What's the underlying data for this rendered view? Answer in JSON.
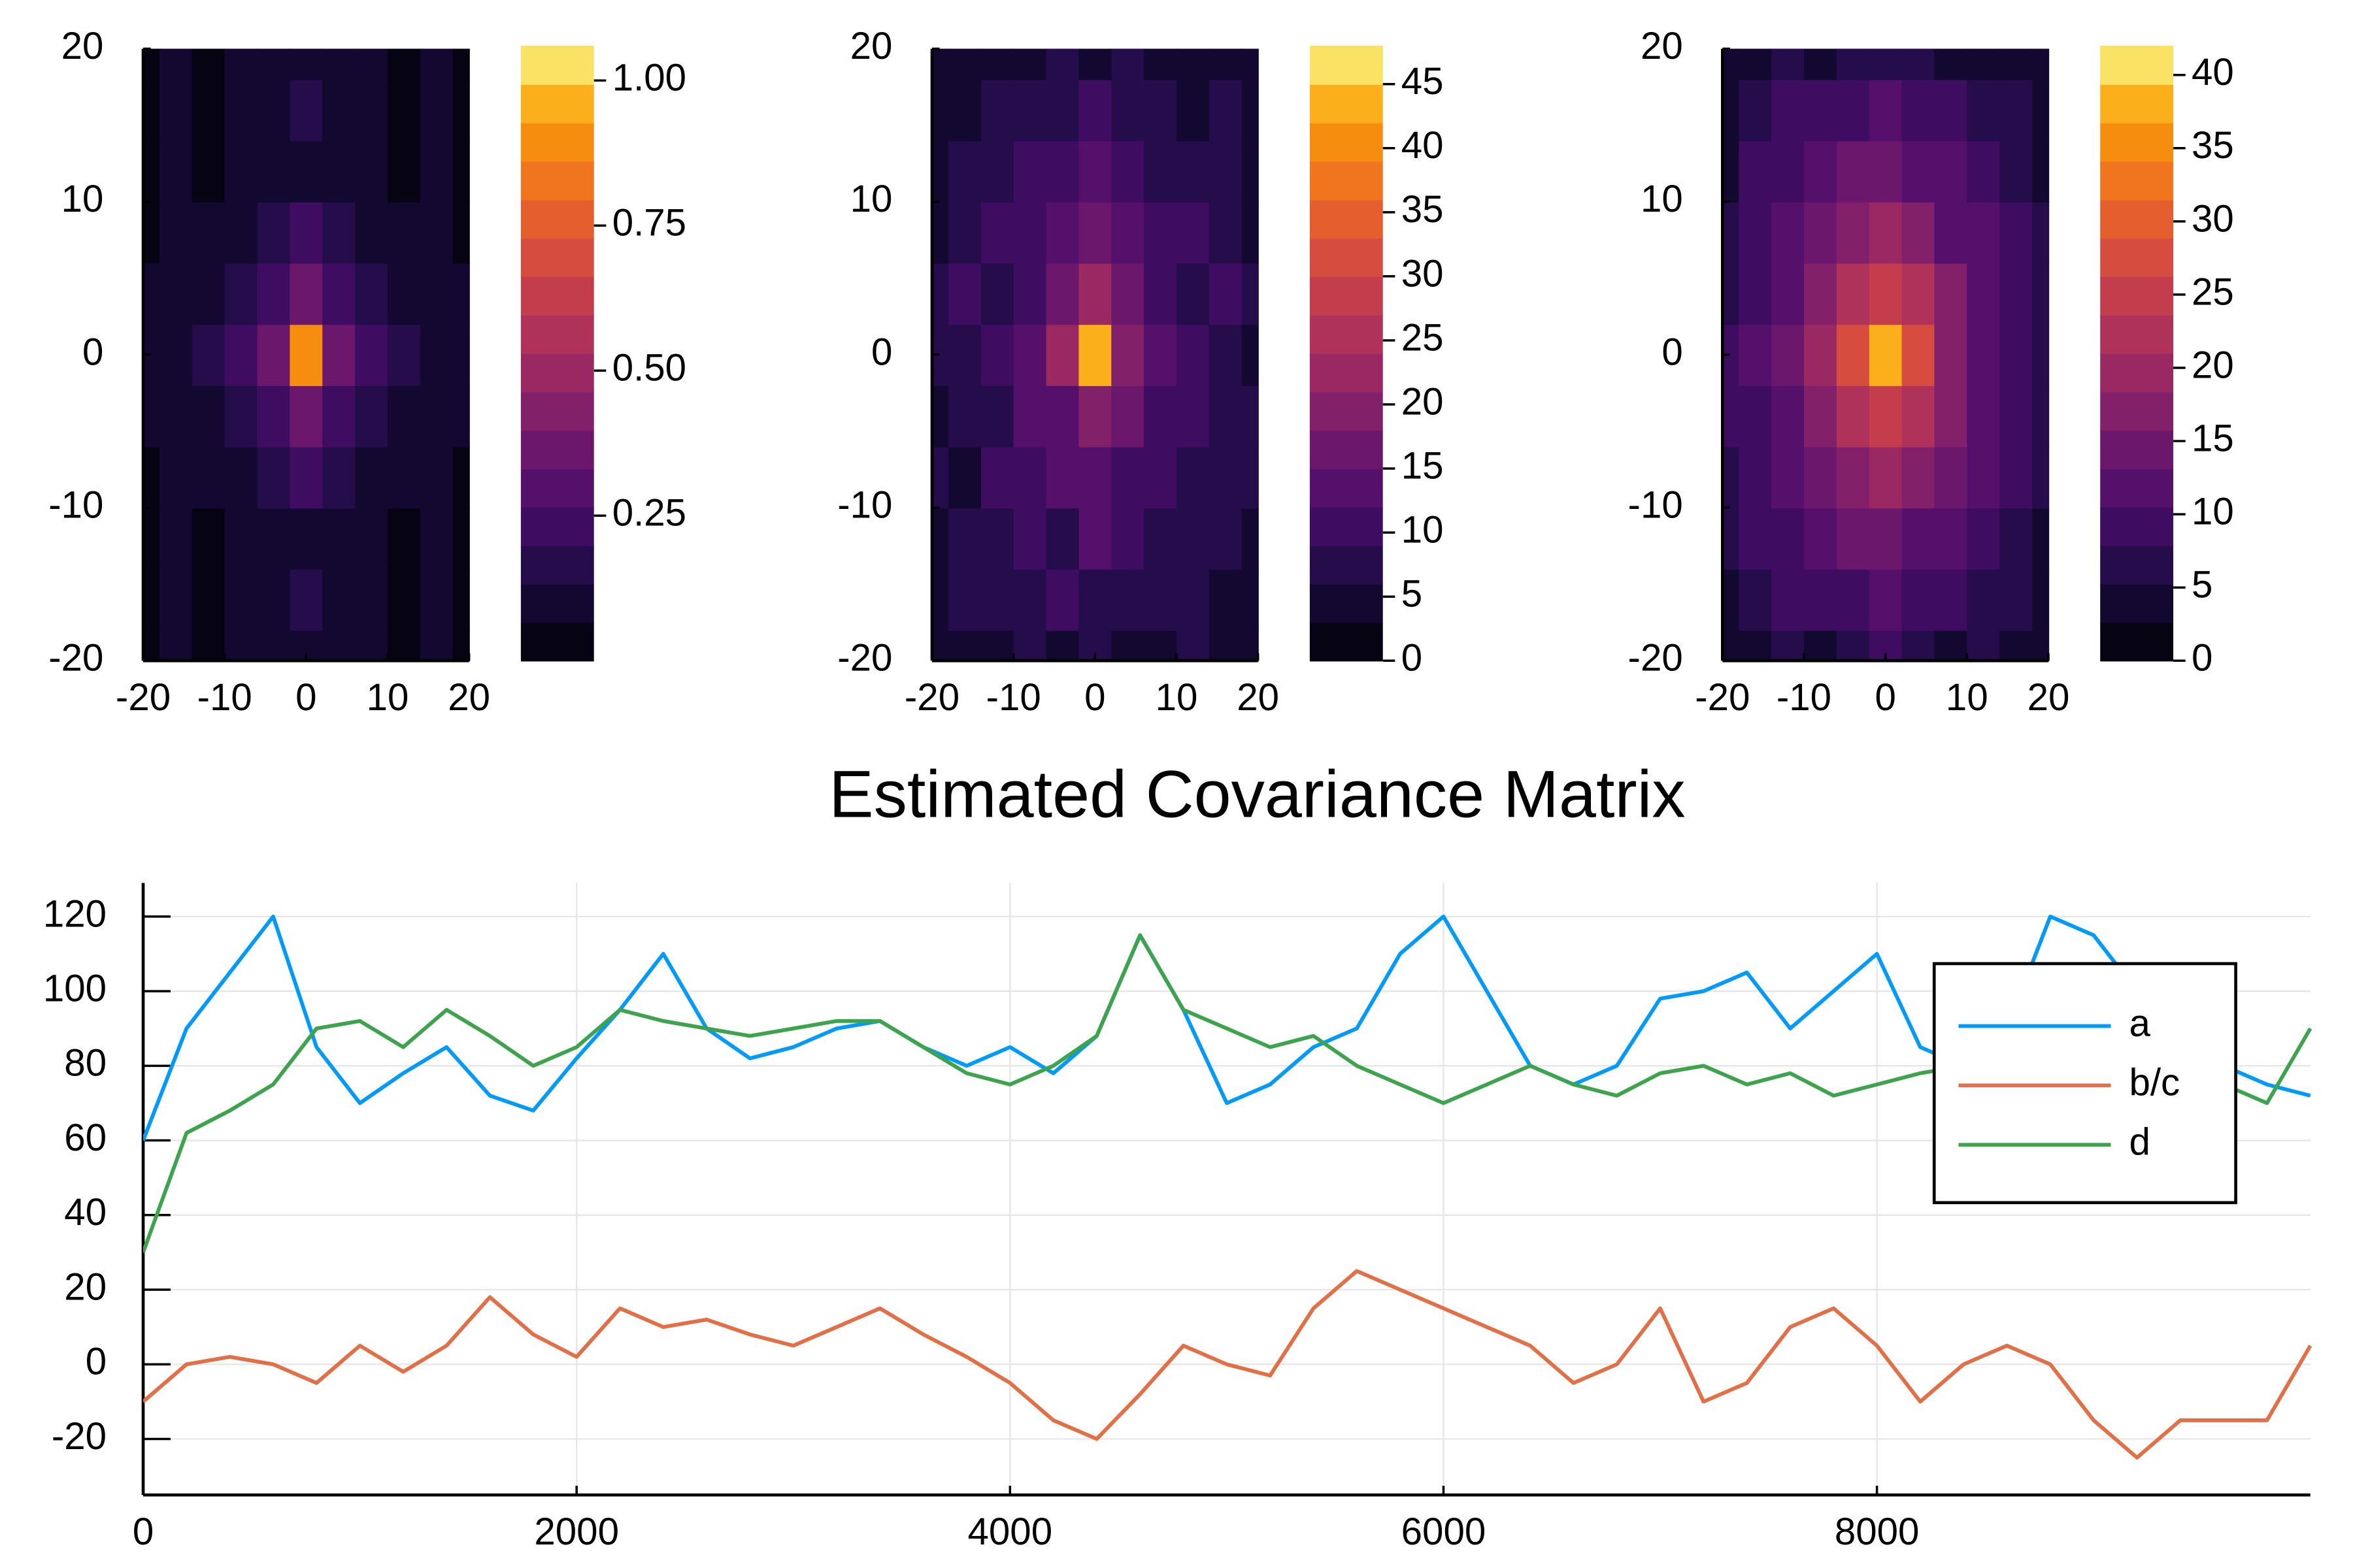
{
  "chart_data": [
    {
      "type": "heatmap",
      "colormap": "inferno",
      "x": [
        -20,
        -16,
        -12,
        -8,
        -4,
        0,
        4,
        8,
        12,
        16,
        20
      ],
      "y": [
        -20,
        -16,
        -12,
        -8,
        -4,
        0,
        4,
        8,
        12,
        16,
        20
      ],
      "z": [
        [
          0.04,
          0.07,
          0.05,
          0.08,
          0.1,
          0.13,
          0.1,
          0.08,
          0.05,
          0.07,
          0.04
        ],
        [
          0.05,
          0.08,
          0.06,
          0.09,
          0.11,
          0.14,
          0.11,
          0.09,
          0.06,
          0.08,
          0.05
        ],
        [
          0.04,
          0.07,
          0.05,
          0.08,
          0.1,
          0.13,
          0.1,
          0.08,
          0.05,
          0.07,
          0.04
        ],
        [
          0.06,
          0.09,
          0.07,
          0.11,
          0.15,
          0.22,
          0.15,
          0.11,
          0.07,
          0.09,
          0.06
        ],
        [
          0.08,
          0.1,
          0.09,
          0.14,
          0.2,
          0.35,
          0.2,
          0.14,
          0.09,
          0.1,
          0.08
        ],
        [
          0.1,
          0.12,
          0.14,
          0.2,
          0.35,
          0.9,
          0.35,
          0.2,
          0.14,
          0.12,
          0.1
        ],
        [
          0.08,
          0.1,
          0.09,
          0.14,
          0.2,
          0.35,
          0.2,
          0.14,
          0.09,
          0.1,
          0.08
        ],
        [
          0.06,
          0.09,
          0.07,
          0.11,
          0.15,
          0.22,
          0.15,
          0.11,
          0.07,
          0.09,
          0.06
        ],
        [
          0.04,
          0.07,
          0.05,
          0.08,
          0.1,
          0.13,
          0.1,
          0.08,
          0.05,
          0.07,
          0.04
        ],
        [
          0.05,
          0.08,
          0.06,
          0.09,
          0.11,
          0.14,
          0.11,
          0.09,
          0.06,
          0.08,
          0.05
        ],
        [
          0.04,
          0.07,
          0.05,
          0.08,
          0.1,
          0.13,
          0.1,
          0.08,
          0.05,
          0.07,
          0.04
        ]
      ],
      "xlim": [
        -20,
        20
      ],
      "ylim": [
        -20,
        20
      ],
      "xticks": [
        -20,
        -10,
        0,
        10,
        20
      ],
      "yticks": [
        -20,
        -10,
        0,
        10,
        20
      ],
      "clim": [
        0,
        1.06
      ],
      "cticks": [
        0.25,
        {
          "value": 0.5,
          "label": "0.50"
        },
        0.75,
        {
          "value": 1,
          "label": "1.00"
        }
      ]
    },
    {
      "type": "heatmap",
      "colormap": "inferno",
      "x": [
        -20,
        -16,
        -12,
        -8,
        -4,
        0,
        4,
        8,
        12,
        16,
        20
      ],
      "y": [
        -20,
        -16,
        -12,
        -8,
        -4,
        0,
        4,
        8,
        12,
        16,
        20
      ],
      "z": [
        [
          3,
          5,
          4,
          6,
          5,
          7,
          5,
          4,
          6,
          3,
          4
        ],
        [
          5,
          6,
          8,
          6,
          9,
          8,
          7,
          6,
          8,
          5,
          4
        ],
        [
          4,
          7,
          6,
          9,
          8,
          12,
          9,
          7,
          6,
          8,
          5
        ],
        [
          6,
          5,
          9,
          10,
          12,
          14,
          11,
          9,
          8,
          6,
          7
        ],
        [
          5,
          8,
          7,
          12,
          14,
          20,
          15,
          10,
          9,
          7,
          6
        ],
        [
          7,
          6,
          10,
          13,
          22,
          42,
          20,
          12,
          9,
          8,
          5
        ],
        [
          6,
          9,
          8,
          11,
          15,
          22,
          16,
          11,
          8,
          9,
          6
        ],
        [
          5,
          7,
          9,
          10,
          13,
          15,
          12,
          9,
          10,
          6,
          5
        ],
        [
          4,
          6,
          8,
          9,
          10,
          13,
          9,
          8,
          7,
          6,
          4
        ],
        [
          5,
          4,
          7,
          6,
          8,
          9,
          7,
          6,
          5,
          7,
          3
        ],
        [
          3,
          5,
          4,
          5,
          6,
          5,
          6,
          4,
          5,
          3,
          4
        ]
      ],
      "xlim": [
        -20,
        20
      ],
      "ylim": [
        -20,
        20
      ],
      "xticks": [
        -20,
        -10,
        0,
        10,
        20
      ],
      "yticks": [
        -20,
        -10,
        0,
        10,
        20
      ],
      "clim": [
        0,
        48
      ],
      "cticks": [
        0,
        5,
        10,
        15,
        20,
        25,
        30,
        35,
        40,
        45
      ]
    },
    {
      "type": "heatmap",
      "colormap": "inferno",
      "x": [
        -20,
        -16,
        -12,
        -8,
        -4,
        0,
        4,
        8,
        12,
        16,
        20
      ],
      "y": [
        -20,
        -16,
        -12,
        -8,
        -4,
        0,
        4,
        8,
        12,
        16,
        20
      ],
      "z": [
        [
          4,
          5,
          6,
          5,
          7,
          8,
          6,
          5,
          6,
          4,
          3
        ],
        [
          5,
          7,
          8,
          9,
          10,
          11,
          9,
          8,
          7,
          6,
          4
        ],
        [
          6,
          8,
          10,
          12,
          14,
          15,
          13,
          11,
          9,
          7,
          5
        ],
        [
          7,
          9,
          12,
          15,
          18,
          20,
          17,
          14,
          11,
          8,
          6
        ],
        [
          8,
          10,
          13,
          17,
          22,
          26,
          21,
          16,
          12,
          9,
          7
        ],
        [
          8,
          11,
          14,
          19,
          28,
          38,
          27,
          18,
          13,
          10,
          7
        ],
        [
          7,
          10,
          13,
          17,
          22,
          25,
          21,
          16,
          12,
          9,
          6
        ],
        [
          6,
          9,
          12,
          15,
          17,
          19,
          16,
          13,
          11,
          8,
          6
        ],
        [
          5,
          8,
          10,
          12,
          14,
          15,
          13,
          11,
          9,
          7,
          5
        ],
        [
          5,
          6,
          8,
          9,
          10,
          11,
          9,
          8,
          7,
          6,
          4
        ],
        [
          3,
          5,
          6,
          5,
          7,
          6,
          6,
          5,
          5,
          4,
          3
        ]
      ],
      "xlim": [
        -20,
        20
      ],
      "ylim": [
        -20,
        20
      ],
      "xticks": [
        -20,
        -10,
        0,
        10,
        20
      ],
      "yticks": [
        -20,
        -10,
        0,
        10,
        20
      ],
      "clim": [
        0,
        42
      ],
      "cticks": [
        0,
        5,
        10,
        15,
        20,
        25,
        30,
        35,
        40
      ]
    },
    {
      "type": "line",
      "title": "Estimated Covariance Matrix",
      "grid": true,
      "legend": "right",
      "x": [
        0,
        200,
        400,
        600,
        800,
        1000,
        1200,
        1400,
        1600,
        1800,
        2000,
        2200,
        2400,
        2600,
        2800,
        3000,
        3200,
        3400,
        3600,
        3800,
        4000,
        4200,
        4400,
        4600,
        4800,
        5000,
        5200,
        5400,
        5600,
        5800,
        6000,
        6200,
        6400,
        6600,
        6800,
        7000,
        7200,
        7400,
        7600,
        7800,
        8000,
        8200,
        8400,
        8600,
        8800,
        9000,
        9200,
        9400,
        9600,
        9800,
        10000
      ],
      "series": [
        {
          "name": "a",
          "color": "#009af9",
          "values": [
            60,
            90,
            105,
            120,
            85,
            70,
            78,
            85,
            72,
            68,
            82,
            95,
            110,
            90,
            82,
            85,
            90,
            92,
            85,
            80,
            85,
            78,
            88,
            115,
            95,
            70,
            75,
            85,
            90,
            110,
            120,
            100,
            80,
            75,
            80,
            98,
            100,
            105,
            90,
            100,
            110,
            85,
            80,
            90,
            120,
            115,
            100,
            95,
            80,
            75,
            72
          ]
        },
        {
          "name": "b/c",
          "color": "#e26f46",
          "values": [
            -10,
            0,
            2,
            0,
            -5,
            5,
            -2,
            5,
            18,
            8,
            2,
            15,
            10,
            12,
            8,
            5,
            10,
            15,
            8,
            2,
            -5,
            -15,
            -20,
            -8,
            5,
            0,
            -3,
            15,
            25,
            20,
            15,
            10,
            5,
            -5,
            0,
            15,
            -10,
            -5,
            10,
            15,
            5,
            -10,
            0,
            5,
            0,
            -15,
            -25,
            -15,
            -15,
            -15,
            5
          ]
        },
        {
          "name": "d",
          "color": "#3da44d",
          "values": [
            30,
            62,
            68,
            75,
            90,
            92,
            85,
            95,
            88,
            80,
            85,
            95,
            92,
            90,
            88,
            90,
            92,
            92,
            85,
            78,
            75,
            80,
            88,
            115,
            95,
            90,
            85,
            88,
            80,
            75,
            70,
            75,
            80,
            75,
            72,
            78,
            80,
            75,
            78,
            72,
            75,
            78,
            80,
            85,
            80,
            82,
            80,
            72,
            75,
            70,
            90
          ]
        }
      ],
      "xlim": [
        0,
        10000
      ],
      "ylim": [
        -35,
        129
      ],
      "xticks": [
        0,
        2000,
        4000,
        6000,
        8000
      ],
      "yticks": [
        -20,
        0,
        20,
        40,
        60,
        80,
        100,
        120
      ]
    }
  ]
}
